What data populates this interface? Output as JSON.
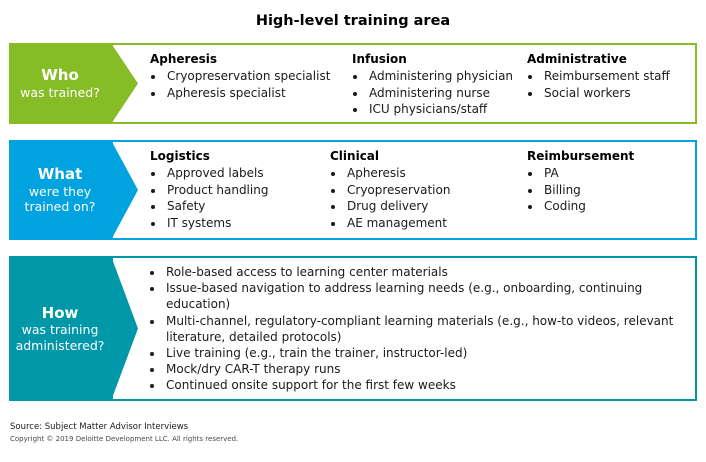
{
  "title": "High-level training area",
  "colors": {
    "green": "#86BC25",
    "blue": "#00A3E0",
    "teal": "#0097A9"
  },
  "rows": [
    {
      "id": "who",
      "label_title": "Who",
      "label_sub": "was trained?",
      "columns": [
        {
          "heading": "Apheresis",
          "items": [
            "Cryopreservation specialist",
            "Apheresis specialist"
          ]
        },
        {
          "heading": "Infusion",
          "items": [
            "Administering physician",
            "Administering nurse",
            "ICU physicians/staff"
          ]
        },
        {
          "heading": "Administrative",
          "items": [
            "Reimbursement staff",
            "Social workers"
          ]
        }
      ]
    },
    {
      "id": "what",
      "label_title": "What",
      "label_sub": "were they trained on?",
      "columns": [
        {
          "heading": "Logistics",
          "items": [
            "Approved labels",
            "Product handling",
            "Safety",
            "IT systems"
          ]
        },
        {
          "heading": "Clinical",
          "items": [
            "Apheresis",
            "Cryopreservation",
            "Drug delivery",
            "AE management"
          ]
        },
        {
          "heading": "Reimbursement",
          "items": [
            "PA",
            "Billing",
            "Coding"
          ]
        }
      ]
    },
    {
      "id": "how",
      "label_title": "How",
      "label_sub": "was training administered?",
      "items": [
        "Role-based access to learning center materials",
        "Issue-based navigation to address learning needs (e.g., onboarding, continuing education)",
        "Multi-channel, regulatory-compliant learning materials (e.g., how-to videos, relevant literature, detailed protocols)",
        "Live training (e.g., train the trainer, instructor-led)",
        "Mock/dry CAR-T therapy runs",
        "Continued onsite support for the first few weeks"
      ]
    }
  ],
  "footer": {
    "source": "Source: Subject Matter Advisor Interviews",
    "copyright": "Copyright © 2019 Deloitte Development LLC. All rights reserved."
  }
}
